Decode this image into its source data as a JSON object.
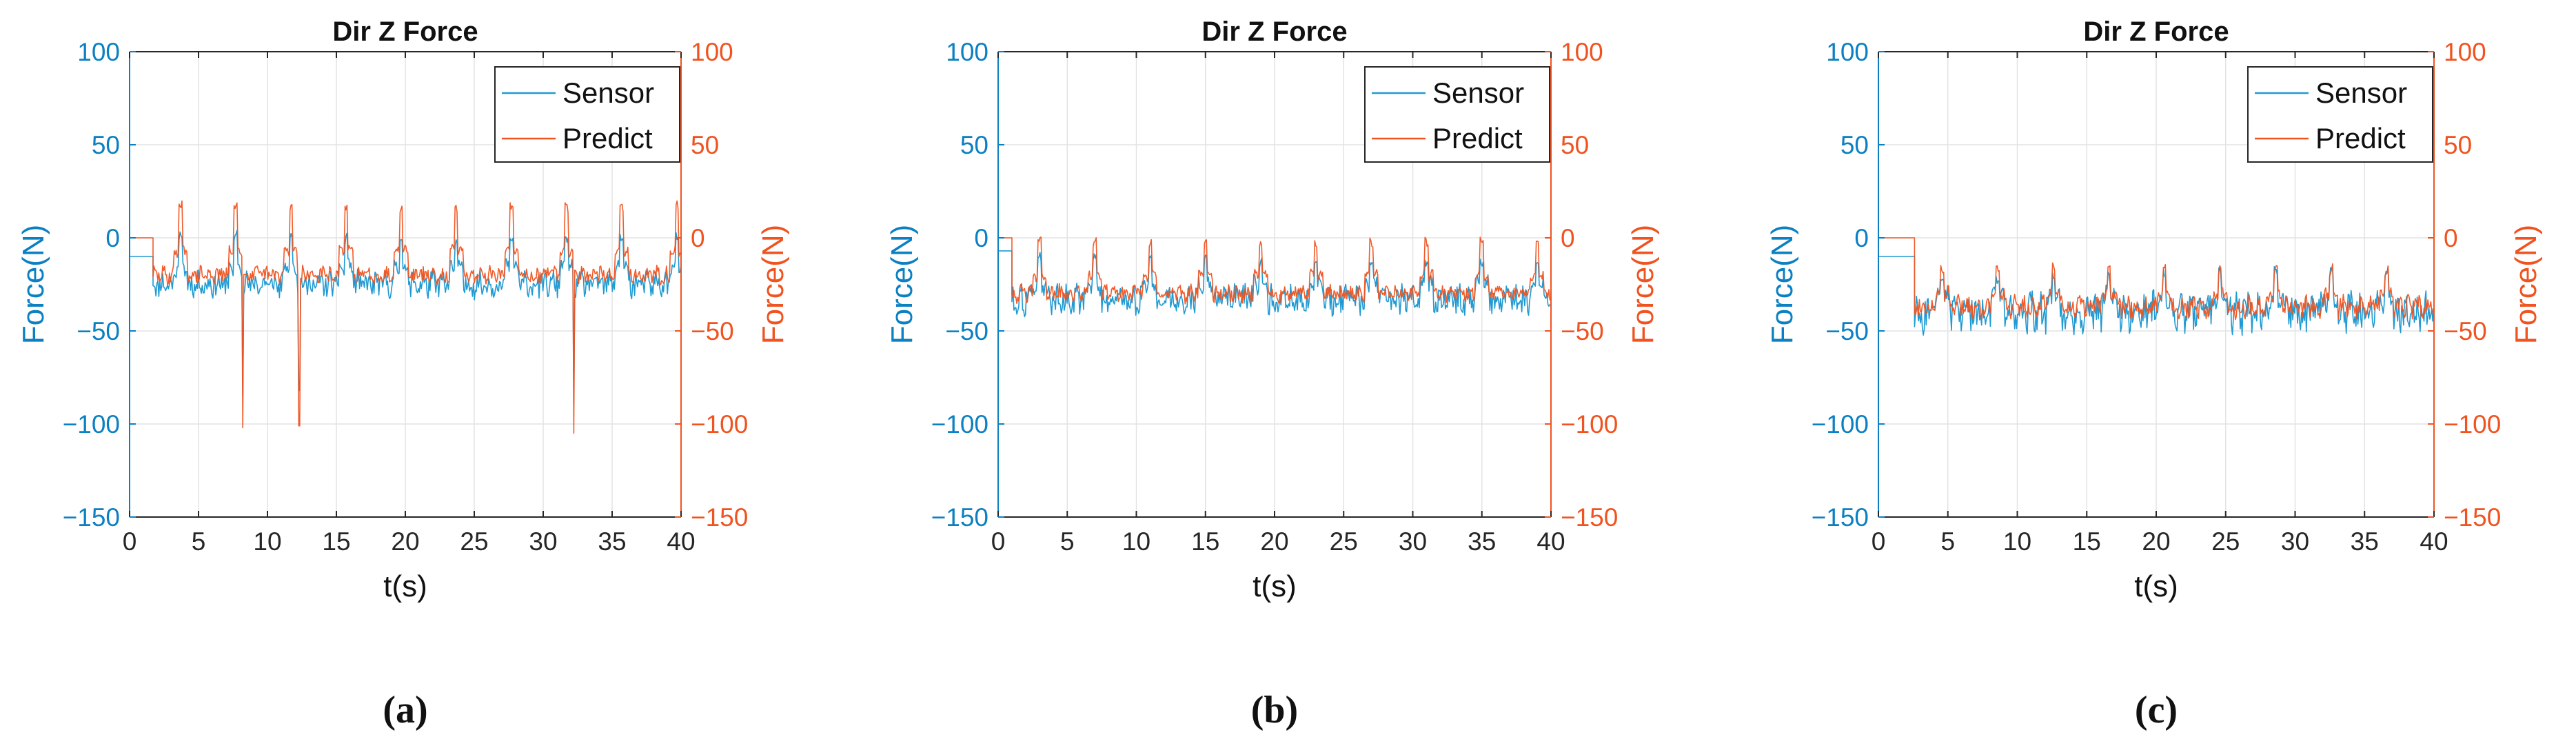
{
  "colors": {
    "sensor": "#1f9ad2",
    "predict": "#f0531f",
    "left_axis": "#0b80c2",
    "right_axis": "#f0531f",
    "grid": "#e3e3e3",
    "axis": "#262626"
  },
  "chart_data": [
    {
      "type": "line",
      "panel_label": "(a)",
      "title": "Dir Z Force",
      "xlabel": "t(s)",
      "ylabel_left": "Force(N)",
      "ylabel_right": "Force(N)",
      "xlim": [
        0,
        40
      ],
      "ylim_left": [
        -150,
        100
      ],
      "ylim_right": [
        -150,
        100
      ],
      "xticks": [
        0,
        5,
        10,
        15,
        20,
        25,
        30,
        35,
        40
      ],
      "yticks": [
        -150,
        -100,
        -50,
        0,
        50,
        100
      ],
      "grid": true,
      "legend_position": "top-right",
      "pattern": {
        "start_time": 1.7,
        "pre_sensor": -10,
        "pre_predict": 0,
        "sensor_base": -25,
        "predict_base": -20,
        "sensor_amplitude": 6,
        "predict_amplitude": 4,
        "period": 4.0,
        "peak_sensor": 0,
        "peak_predict": 17
      },
      "spikes_sensor": [
        [
          8.2,
          -85
        ],
        [
          12.3,
          -82
        ],
        [
          32.2,
          -88
        ]
      ],
      "spikes_predict": [
        [
          8.2,
          -102
        ],
        [
          12.3,
          -101
        ],
        [
          32.2,
          -105
        ]
      ],
      "series": [
        {
          "name": "Sensor",
          "axis": "left"
        },
        {
          "name": "Predict",
          "axis": "right"
        }
      ]
    },
    {
      "type": "line",
      "panel_label": "(b)",
      "title": "Dir Z Force",
      "xlabel": "t(s)",
      "ylabel_left": "Force(N)",
      "ylabel_right": "Force(N)",
      "xlim": [
        0,
        40
      ],
      "ylim_left": [
        -150,
        100
      ],
      "ylim_right": [
        -150,
        100
      ],
      "xticks": [
        0,
        5,
        10,
        15,
        20,
        25,
        30,
        35,
        40
      ],
      "yticks": [
        -150,
        -100,
        -50,
        0,
        50,
        100
      ],
      "grid": true,
      "legend_position": "top-right",
      "pattern": {
        "start_time": 1.0,
        "pre_sensor": -7,
        "pre_predict": 0,
        "sensor_base": -33,
        "predict_base": -30,
        "sensor_amplitude": 7,
        "predict_amplitude": 4,
        "period": 4.0,
        "peak_sensor": -12,
        "peak_predict": -2
      },
      "spikes_sensor": [],
      "spikes_predict": [],
      "series": [
        {
          "name": "Sensor",
          "axis": "left"
        },
        {
          "name": "Predict",
          "axis": "right"
        }
      ]
    },
    {
      "type": "line",
      "panel_label": "(c)",
      "title": "Dir Z Force",
      "xlabel": "t(s)",
      "ylabel_left": "Force(N)",
      "ylabel_right": "Force(N)",
      "xlim": [
        0,
        40
      ],
      "ylim_left": [
        -150,
        100
      ],
      "ylim_right": [
        -150,
        100
      ],
      "xticks": [
        0,
        5,
        10,
        15,
        20,
        25,
        30,
        35,
        40
      ],
      "yticks": [
        -150,
        -100,
        -50,
        0,
        50,
        100
      ],
      "grid": true,
      "legend_position": "top-right",
      "pattern": {
        "start_time": 2.6,
        "pre_sensor": -10,
        "pre_predict": 0,
        "sensor_base": -40,
        "predict_base": -37,
        "sensor_amplitude": 9,
        "predict_amplitude": 5,
        "period": 4.0,
        "peak_sensor": -20,
        "peak_predict": -17
      },
      "spikes_sensor": [],
      "spikes_predict": [],
      "series": [
        {
          "name": "Sensor",
          "axis": "left"
        },
        {
          "name": "Predict",
          "axis": "right"
        }
      ]
    }
  ]
}
